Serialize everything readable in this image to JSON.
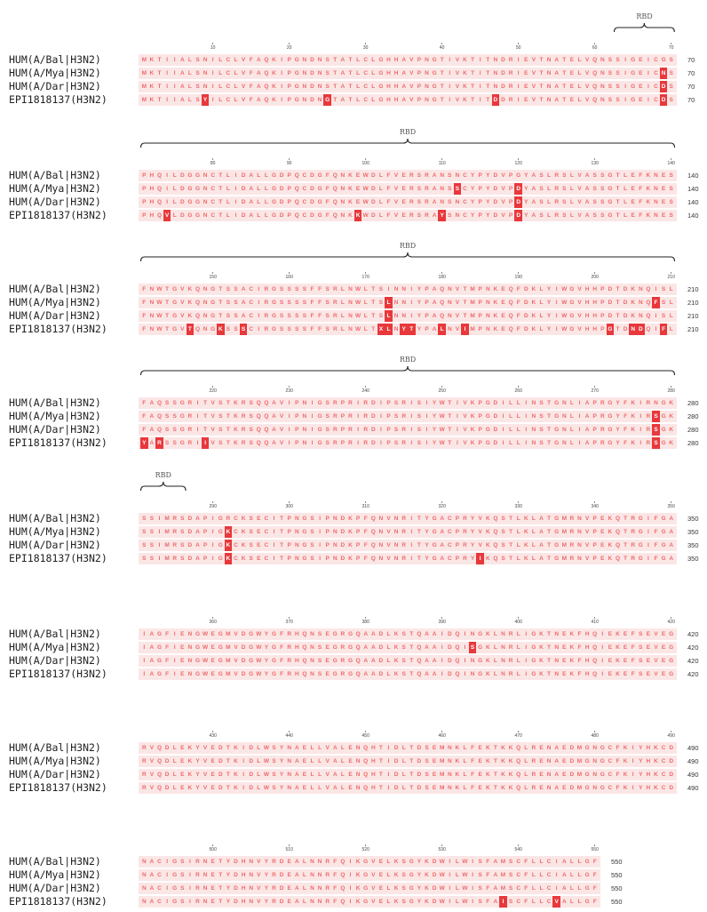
{
  "sequences": [
    {
      "name": "HUM(A/Bal|H3N2)",
      "seq": "MKTIIALSNILCLVFAQKIPGNDNSTATLCLGHHAVPNGTIVKTITNDRIEVTNATELVQNSSIGEICGSPHQILDGGNCTLIDALLGDPQCDGFQNKEWDLFVERSRANSNCYPYDVPGYASLRSLVASSGTLEFKNESFNWTGVKQNGTSSACIRGSSSSFFSRLNWLTSINNIYPAQNVTMPNKEQFDKLYIWGVHHPDTDKNQISLFAQSSGRITVSTKRSQQAVIPNIGSRPRIRDIPSRISIYWTIVKPGDILLINSTGNLIAPRGYFKIRNGKSSIMRSDAPIGRCKSECITPNGSIPNDKPFQNVNRITYGACPRYVKQSTLKLATGMRNVPEKQTRGIFGAIAGFIENGWEGMVDGWYGFRHQNSEGRGQAADLKSTQAAIDQINGKLNRLIGKTNEKFHQIEKEFSEVEGRVQDLEKYVEDTKIDLWSYNAELLVALENQHTIDLTDSEMNKLFEKTKKQLRENAEDMGNGCFKIYHKCDNACIGSIRNETYDHNVYRDEALNNRFQIKGVELKSGYKDWILWISFAMSCFLLCIALLGF"
    },
    {
      "name": "HUM(A/Mya|H3N2)",
      "seq": "MKTIIALSNILCLVFAQKIPGNDNSTATLCLGHHAVPNGTIVKTITNDRIEVTNATELVQNSSIGEICNSPHQILDGGNCTLIDALLGDPQCDGFQNKEWDLFVERSRANSSCYPYDVPDYASLRSLVASSGTLEFKNESFNWTGVKQNGTSSACIRGSSSSFFSRLNWLTSLNNIYPAQNVTMPNKEQFDKLYIWGVHHPDTDKNQFSLFAQSSGRITVSTKRSQQAVIPNIGSRPRIRDIPSRISIYWTIVKPGDILLINSTGNLIAPRGYFKIRSGKSSIMRSDAPIGKCKSECITPNGSIPNDKPFQNVNRITYGACPRYVKQSTLKLATGMRNVPEKQTRGIFGAIAGFIENGWEGMVDGWYGFRHQNSEGRGQAADLKSTQAAIDQISGKLNRLIGKTNEKFHQIEKEFSEVEGRVQDLEKYVEDTKIDLWSYNAELLVALENQHTIDLTDSEMNKLFEKTKKQLRENAEDMGNGCFKIYHKCDNACIGSIRNETYDHNVYRDEALNNRFQIKGVELKSGYKDWILWISFAMSCFLLCIALLGF"
    },
    {
      "name": "HUM(A/Dar|H3N2)",
      "seq": "MKTIIALSNILCLVFAQKIPGNDNSTATLCLGHHAVPNGTIVKTITNDRIEVTNATELVQNSSIGEICDSPHQILDGGNCTLIDALLGDPQCDGFQNKEWDLFVERSRANSNCYPYDVPDYASLRSLVASSGTLEFKNESFNWTGVKQNGTSSACIRGSSSSFFSRLNWLTSLNNIYPAQNVTMPNKEQFDKLYIWGVHHPDTDKNQISLFAQSSGRITVSTKRSQQAVIPNIGSRPRIRDIPSRISIYWTIVKPGDILLINSTGNLIAPRGYFKIRSGKSSIMRSDAPIGKCKSECITPNGSIPNDKPFQNVNRITYGACPRYVKQSTLKLATGMRNVPEKQTRGIFGAIAGFIENGWEGMVDGWYGFRHQNSEGRGQAADLKSTQAAIDQINGKLNRLIGKTNEKFHQIEKEFSEVEGRVQDLEKYVEDTKIDLWSYNAELLVALENQHTIDLTDSEMNKLFEKTKKQLRENAEDMGNGCFKIYHKCDNACIGSIRNETYDHNVYRDEALNNRFQIKGVELKSGYKDWILWISFAMSCFLLCIALLGF"
    },
    {
      "name": "EPI1818137(H3N2)",
      "seq": "MKTIIALSYILCLVFAQKIPGNDNGTATLCLGHHAVPNGTIVKTITDDRIEVTNATELVQNSSIGEICDSPHQVLDGGNCTLIDALLGDPQCDGFQNKKWDLFVERSRAYSNCYPYDVPDYASLRSLVASSGTLEFKNESFNWTGVTQNGKSSSCIRGSSSSFFSRLNWLTXLNYTYPALNVIMPNKEQFDKLYIWGVHHPGTDNDQIFLYARSSGRIIVSTKRSQQAVIPNIGSRPRIRDIPSRISIYWTIVKPGDILLINSTGNLIAPRGYFKIRSGKSSIMRSDAPIGKCKSECITPNGSIPNDKPFQNVNRITYGACPRYIKQSTLKLATGMRNVPEKQTRGIFGAIAGFIENGWEGMVDGWYGFRHQNSEGRGQAADLKSTQAAIDQINGKLNRLIGKTNEKFHQIEKEFSEVEGRVQDLEKYVEDTKIDLWSYNAELLVALENQHTIDLTDSEMNKLFEKTKKQLRENAEDMGNGCFKIYHKCDNACIGSIRNETYDHNVYRDEALNNRFQIKGVELKSGYKDWILWISFAISCFLLCVALLGF"
    }
  ],
  "blocks": [
    {
      "end": 70,
      "ticks": [
        10,
        20,
        30,
        40,
        50,
        60,
        70
      ]
    },
    {
      "end": 140,
      "ticks": [
        80,
        90,
        100,
        110,
        120,
        130,
        140
      ]
    },
    {
      "end": 210,
      "ticks": [
        150,
        160,
        170,
        180,
        190,
        200,
        210
      ]
    },
    {
      "end": 280,
      "ticks": [
        220,
        230,
        240,
        250,
        260,
        270,
        280
      ]
    },
    {
      "end": 350,
      "ticks": [
        290,
        300,
        310,
        320,
        330,
        340,
        350
      ]
    },
    {
      "end": 420,
      "ticks": [
        360,
        370,
        380,
        390,
        400,
        410,
        420
      ]
    },
    {
      "end": 490,
      "ticks": [
        430,
        440,
        450,
        460,
        470,
        480,
        490
      ]
    },
    {
      "end": 550,
      "ticks": [
        500,
        510,
        520,
        530,
        540,
        550
      ]
    }
  ],
  "regions": [
    {
      "label": "RBD",
      "start": 63,
      "end": 70
    },
    {
      "label": "RBD",
      "start": 71,
      "end": 140
    },
    {
      "label": "RBD",
      "start": 141,
      "end": 210
    },
    {
      "label": "RBD",
      "start": 211,
      "end": 280
    },
    {
      "label": "RBD",
      "start": 281,
      "end": 286
    }
  ],
  "colors": {
    "residue_text": "#ee6a6a",
    "row_background": "#fbe6e6",
    "variant_background": "#e8383b",
    "variant_text": "#ffffff"
  }
}
